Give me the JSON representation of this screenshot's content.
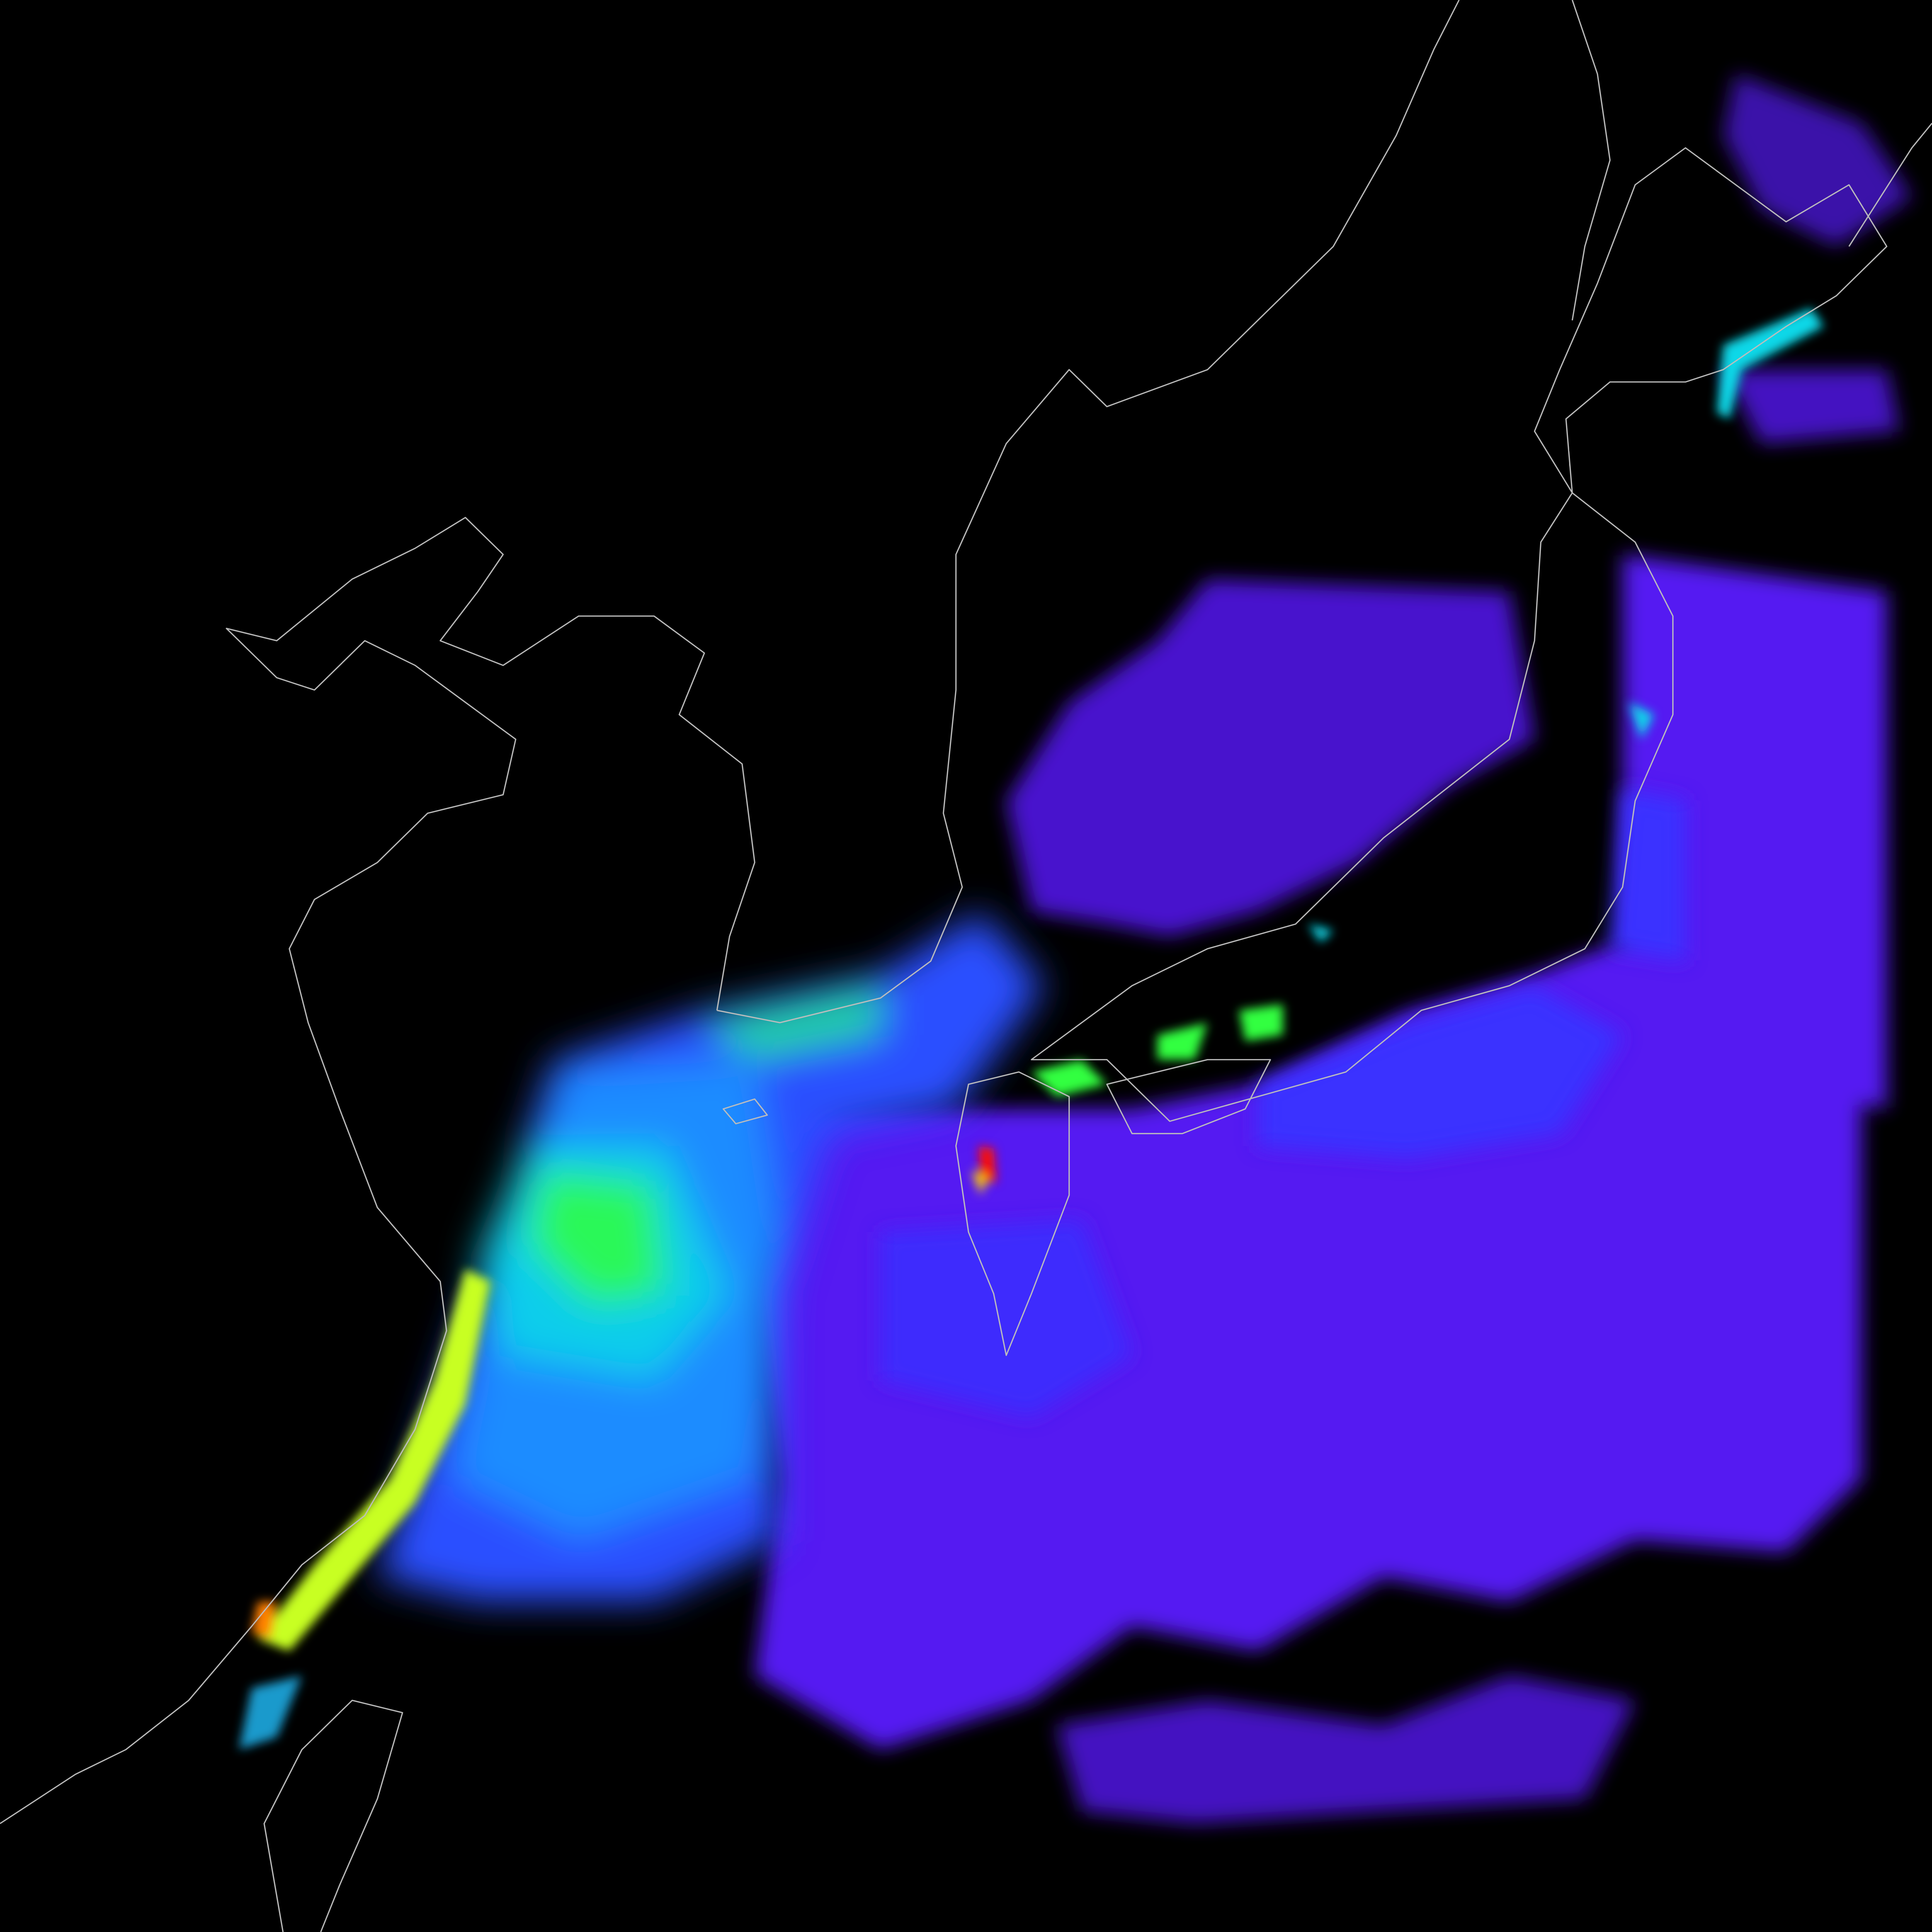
{
  "map": {
    "background_color": "#000000",
    "coastline_color": "#bdbdbd",
    "colormap": [
      "#5a1aff",
      "#2a40ff",
      "#1a8cff",
      "#10d8e8",
      "#30ff40",
      "#e0ff10",
      "#ff8000",
      "#ff0000"
    ],
    "regions": {
      "east_china_sea": "high",
      "yellow_coast_band": "very-high",
      "ariake_bay": "maximum",
      "seto_inland_sea": "high",
      "sea_of_japan": "low",
      "pacific": "low",
      "okhotsk_coast": "moderate"
    }
  }
}
